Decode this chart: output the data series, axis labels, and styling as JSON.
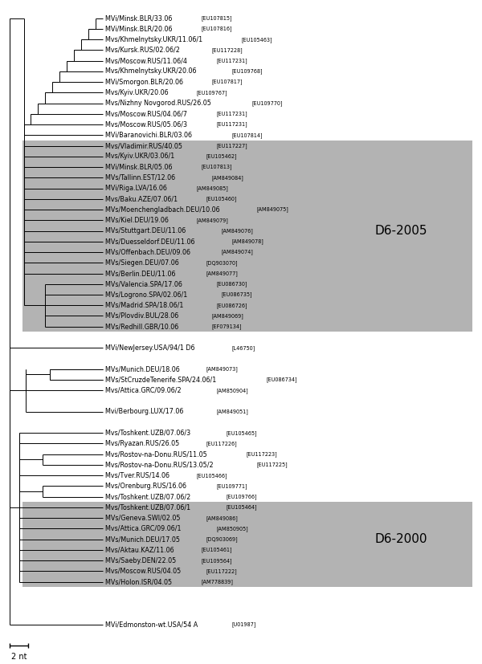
{
  "fig_width": 6.0,
  "fig_height": 8.27,
  "scale_bar_label": "2 nt",
  "d6_2005_label": "D6-2005",
  "d6_2000_label": "D6-2000",
  "gray_color": "#b3b3b3",
  "line_color": "#000000",
  "taxa": [
    {
      "name": "MVi/Minsk.BLR/33.06",
      "acc": "[EU107815]",
      "row": 0
    },
    {
      "name": "MVi/Minsk.BLR/20.06",
      "acc": "[EU107816]",
      "row": 1
    },
    {
      "name": "Mvs/Khmelnytsky.UKR/11.06/1",
      "acc": "[EU105463]",
      "row": 2
    },
    {
      "name": "Mvs/Kursk.RUS/02.06/2",
      "acc": "[EU117228]",
      "row": 3
    },
    {
      "name": "Mvs/Moscow.RUS/11.06/4",
      "acc": "[EU117231]",
      "row": 4
    },
    {
      "name": "Mvs/Khmelnytsky.UKR/20.06",
      "acc": "[EU109768]",
      "row": 5
    },
    {
      "name": "MVi/Smorgon.BLR/20.06",
      "acc": "[EU107817]",
      "row": 6
    },
    {
      "name": "Mvs/Kyiv.UKR/20.06",
      "acc": "[EU109767]",
      "row": 7
    },
    {
      "name": "Mvs/Nizhny Novgorod.RUS/26.05",
      "acc": "[EU109770]",
      "row": 8
    },
    {
      "name": "Mvs/Moscow.RUS/04.06/7",
      "acc": "[EU117231]",
      "row": 9
    },
    {
      "name": "Mvs/Moscow.RUS/05.06/3",
      "acc": "[EU117231]",
      "row": 10
    },
    {
      "name": "MVi/Baranovichi.BLR/03.06",
      "acc": "[EU107814]",
      "row": 11
    },
    {
      "name": "Mvs/Vladimir.RUS/40.05",
      "acc": "[EU117227]",
      "row": 12,
      "shaded": true
    },
    {
      "name": "Mvs/Kyiv.UKR/03.06/1",
      "acc": "[EU105462]",
      "row": 13,
      "shaded": true
    },
    {
      "name": "MVi/Minsk.BLR/05.06",
      "acc": "[EU107813]",
      "row": 14,
      "shaded": true
    },
    {
      "name": "MVs/Tallinn.EST/12.06",
      "acc": "[AM849084]",
      "row": 15,
      "shaded": true
    },
    {
      "name": "MVi/Riga.LVA/16.06",
      "acc": "[AM849085]",
      "row": 16,
      "shaded": true
    },
    {
      "name": "Mvs/Baku.AZE/07.06/1",
      "acc": "[EU105460]",
      "row": 17,
      "shaded": true
    },
    {
      "name": "MVs/Moenchengladbach.DEU/10.06",
      "acc": "[AM849075]",
      "row": 18,
      "shaded": true
    },
    {
      "name": "MVs/Kiel.DEU/19.06",
      "acc": "[AM849079]",
      "row": 19,
      "shaded": true
    },
    {
      "name": "MVs/Stuttgart.DEU/11.06",
      "acc": "[AM849076]",
      "row": 20,
      "shaded": true
    },
    {
      "name": "MVs/Duesseldorf.DEU/11.06",
      "acc": "[AM849078]",
      "row": 21,
      "shaded": true
    },
    {
      "name": "MVs/Offenbach.DEU/09.06",
      "acc": "[AM849074]",
      "row": 22,
      "shaded": true
    },
    {
      "name": "MVs/Siegen.DEU/07.06",
      "acc": "[DQ903070]",
      "row": 23,
      "shaded": true
    },
    {
      "name": "MVs/Berlin.DEU/11.06",
      "acc": "[AM849077]",
      "row": 24,
      "shaded": true
    },
    {
      "name": "MVs/Valencia.SPA/17.06",
      "acc": "[EU086730]",
      "row": 25,
      "shaded": true
    },
    {
      "name": "MVs/Logrono.SPA/02.06/1",
      "acc": "[EU086735]",
      "row": 26,
      "shaded": true
    },
    {
      "name": "MVs/Madrid.SPA/18.06/1",
      "acc": "[EU086726]",
      "row": 27,
      "shaded": true
    },
    {
      "name": "MVs/Plovdiv.BUL/28.06",
      "acc": "[AM849069]",
      "row": 28,
      "shaded": true
    },
    {
      "name": "MVs/Redhill.GBR/10.06",
      "acc": "[EF079134]",
      "row": 29,
      "shaded": true
    },
    {
      "name": "MVi/NewJersey.USA/94/1 D6",
      "acc": "[L46750]",
      "row": 31
    },
    {
      "name": "MVs/Munich.DEU/18.06",
      "acc": "[AM849073]",
      "row": 33
    },
    {
      "name": "MVs/StCruzdeTenerife.SPA/24.06/1",
      "acc": "[EU086734]",
      "row": 34
    },
    {
      "name": "Mvs/Attica.GRC/09.06/2",
      "acc": "[AM850904]",
      "row": 35
    },
    {
      "name": "Mvi/Berbourg.LUX/17.06",
      "acc": "[AM849051]",
      "row": 37
    },
    {
      "name": "Mvs/Toshkent.UZB/07.06/3",
      "acc": "[EU105465]",
      "row": 39
    },
    {
      "name": "Mvs/Ryazan.RUS/26.05",
      "acc": "[EU117226]",
      "row": 40
    },
    {
      "name": "Mvs/Rostov-na-Donu.RUS/11.05",
      "acc": "[EU117223]",
      "row": 41
    },
    {
      "name": "Mvs/Rostov-na-Donu.RUS/13.05/2",
      "acc": "[EU117225]",
      "row": 42
    },
    {
      "name": "Mvs/Tver.RUS/14.06",
      "acc": "[EU105466]",
      "row": 43
    },
    {
      "name": "Mvs/Orenburg.RUS/16.06",
      "acc": "[EU109771]",
      "row": 44
    },
    {
      "name": "Mvs/Toshkent.UZB/07.06/2",
      "acc": "[EU109766]",
      "row": 45
    },
    {
      "name": "Mvs/Toshkent.UZB/07.06/1",
      "acc": "[EU105464]",
      "row": 46,
      "shaded": true
    },
    {
      "name": "MVs/Geneva.SWI/02.05",
      "acc": "[AM849086]",
      "row": 47,
      "shaded": true
    },
    {
      "name": "Mvs/Attica.GRC/09.06/1",
      "acc": "[AM850905]",
      "row": 48,
      "shaded": true
    },
    {
      "name": "MVs/Munich.DEU/17.05",
      "acc": "[DQ903069]",
      "row": 49,
      "shaded": true
    },
    {
      "name": "Mvs/Aktau.KAZ/11.06",
      "acc": "[EU105461]",
      "row": 50,
      "shaded": true
    },
    {
      "name": "MVs/Saeby.DEN/22.05",
      "acc": "[EU109564]",
      "row": 51,
      "shaded": true
    },
    {
      "name": "Mvs/Moscow.RUS/04.05",
      "acc": "[EU117222]",
      "row": 52,
      "shaded": true
    },
    {
      "name": "MVs/Holon.ISR/04.05",
      "acc": "[AM778839]",
      "row": 53,
      "shaded": true
    },
    {
      "name": "MVi/Edmonston-wt.USA/54 A",
      "acc": "[U01987]",
      "row": 57
    }
  ]
}
